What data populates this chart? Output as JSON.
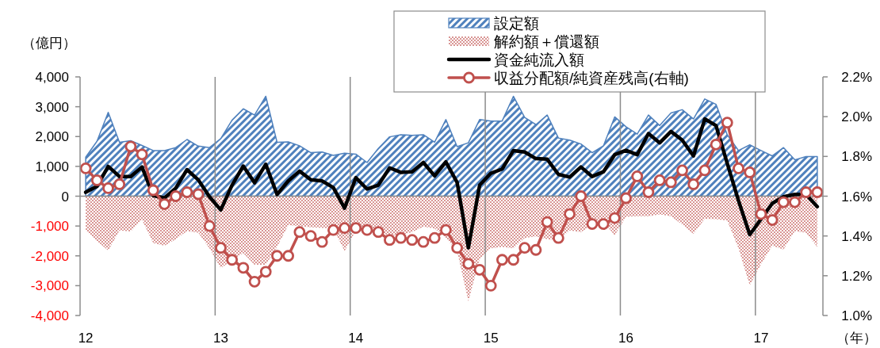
{
  "chart_data": {
    "type": "area",
    "ylabel": "（億円）",
    "xlabel": "（年）",
    "categories": [
      "12",
      null,
      null,
      null,
      null,
      null,
      null,
      null,
      null,
      null,
      null,
      null,
      "13",
      null,
      null,
      null,
      null,
      null,
      null,
      null,
      null,
      null,
      null,
      null,
      "14",
      null,
      null,
      null,
      null,
      null,
      null,
      null,
      null,
      null,
      null,
      null,
      "15",
      null,
      null,
      null,
      null,
      null,
      null,
      null,
      null,
      null,
      null,
      null,
      "16",
      null,
      null,
      null,
      null,
      null,
      null,
      null,
      null,
      null,
      null,
      null,
      "17",
      null,
      null,
      null,
      null,
      null
    ],
    "ylim": [
      -4000,
      4000
    ],
    "yticks": [
      {
        "value": 4000,
        "label": "4,000"
      },
      {
        "value": 3000,
        "label": "3,000"
      },
      {
        "value": 2000,
        "label": "2,000"
      },
      {
        "value": 1000,
        "label": "1,000"
      },
      0,
      {
        "value": -1000,
        "label": "-1,000"
      },
      {
        "value": -2000,
        "label": "-2,000"
      },
      {
        "value": -3000,
        "label": "-3,000"
      },
      {
        "value": -4000,
        "label": "-4,000"
      }
    ],
    "y2lim": [
      1.0,
      2.2
    ],
    "y2ticks": [
      {
        "value": 2.2,
        "label": "2.2%"
      },
      {
        "value": 2.0,
        "label": "2.0%"
      },
      {
        "value": 1.8,
        "label": "1.8%"
      },
      {
        "value": 1.6,
        "label": "1.6%"
      },
      {
        "value": 1.4,
        "label": "1.4%"
      },
      {
        "value": 1.2,
        "label": "1.2%"
      },
      {
        "value": 1.0,
        "label": "1.0%"
      }
    ],
    "grid": "x",
    "legend": "top",
    "ref_lines": [
      {
        "axis": "y",
        "value": 0,
        "color": "#8c8c8c"
      }
    ],
    "series": [
      {
        "name": "設定額",
        "color": "#4f81bd",
        "values": [
          1310,
          1840,
          2810,
          1810,
          1860,
          1700,
          1530,
          1530,
          1630,
          1900,
          1680,
          1630,
          1930,
          2550,
          2930,
          2720,
          3350,
          1810,
          1820,
          1690,
          1460,
          1480,
          1370,
          1440,
          1410,
          1130,
          1600,
          1990,
          2060,
          2040,
          2060,
          1810,
          2570,
          1660,
          1790,
          2570,
          2520,
          2520,
          3350,
          2640,
          2400,
          2720,
          1950,
          1880,
          1750,
          1460,
          1690,
          2660,
          2330,
          2080,
          2720,
          2370,
          2790,
          2900,
          2590,
          3260,
          3080,
          2060,
          1530,
          1720,
          1530,
          1350,
          1630,
          1220,
          1330,
          1330
        ]
      },
      {
        "name": "解約額＋償還額",
        "color": "#d99694",
        "values": [
          -1150,
          -1500,
          -1820,
          -1150,
          -1180,
          -790,
          -1570,
          -1660,
          -1440,
          -1170,
          -1220,
          -1750,
          -2410,
          -2150,
          -1910,
          -2300,
          -2300,
          -1700,
          -970,
          -1000,
          -1040,
          -1060,
          -1080,
          -1840,
          -1150,
          -1130,
          -1220,
          -1310,
          -1310,
          -1200,
          -1020,
          -1080,
          -1400,
          -1840,
          -3520,
          -2100,
          -1750,
          -1700,
          -1750,
          -1400,
          -1350,
          -1440,
          -1480,
          -1150,
          -1200,
          -970,
          -860,
          -1310,
          -690,
          -670,
          -670,
          -610,
          -670,
          -950,
          -1260,
          -760,
          -770,
          -820,
          -1750,
          -2990,
          -2280,
          -1660,
          -1790,
          -1170,
          -1220,
          -1700
        ]
      },
      {
        "name": "資金純流入額",
        "type": "line",
        "color": "#000000",
        "values": [
          130,
          330,
          1000,
          660,
          660,
          980,
          20,
          -60,
          270,
          890,
          550,
          -20,
          -460,
          370,
          1010,
          450,
          1070,
          60,
          510,
          840,
          550,
          510,
          290,
          -400,
          620,
          240,
          370,
          950,
          800,
          820,
          1130,
          680,
          1150,
          460,
          -1730,
          370,
          770,
          910,
          1530,
          1480,
          1260,
          1240,
          730,
          640,
          980,
          660,
          820,
          1390,
          1540,
          1390,
          2100,
          1790,
          2170,
          1880,
          1350,
          2590,
          2370,
          1100,
          -150,
          -1290,
          -770,
          -240,
          -20,
          60,
          60,
          -350
        ]
      },
      {
        "name": "収益分配額/純資産残高(右軸)",
        "type": "line",
        "axis": "y2",
        "marker": "circle",
        "color": "#c0504d",
        "values": [
          1.74,
          1.68,
          1.64,
          1.66,
          1.85,
          1.81,
          1.63,
          1.56,
          1.6,
          1.62,
          1.61,
          1.45,
          1.34,
          1.28,
          1.24,
          1.17,
          1.22,
          1.3,
          1.3,
          1.42,
          1.4,
          1.37,
          1.43,
          1.44,
          1.44,
          1.43,
          1.42,
          1.38,
          1.39,
          1.38,
          1.37,
          1.39,
          1.43,
          1.34,
          1.26,
          1.23,
          1.15,
          1.28,
          1.28,
          1.34,
          1.33,
          1.47,
          1.39,
          1.51,
          1.6,
          1.46,
          1.46,
          1.49,
          1.59,
          1.7,
          1.62,
          1.68,
          1.67,
          1.73,
          1.66,
          1.73,
          1.86,
          1.97,
          1.74,
          1.72,
          1.51,
          1.48,
          1.57,
          1.57,
          1.62,
          1.62
        ]
      }
    ]
  }
}
